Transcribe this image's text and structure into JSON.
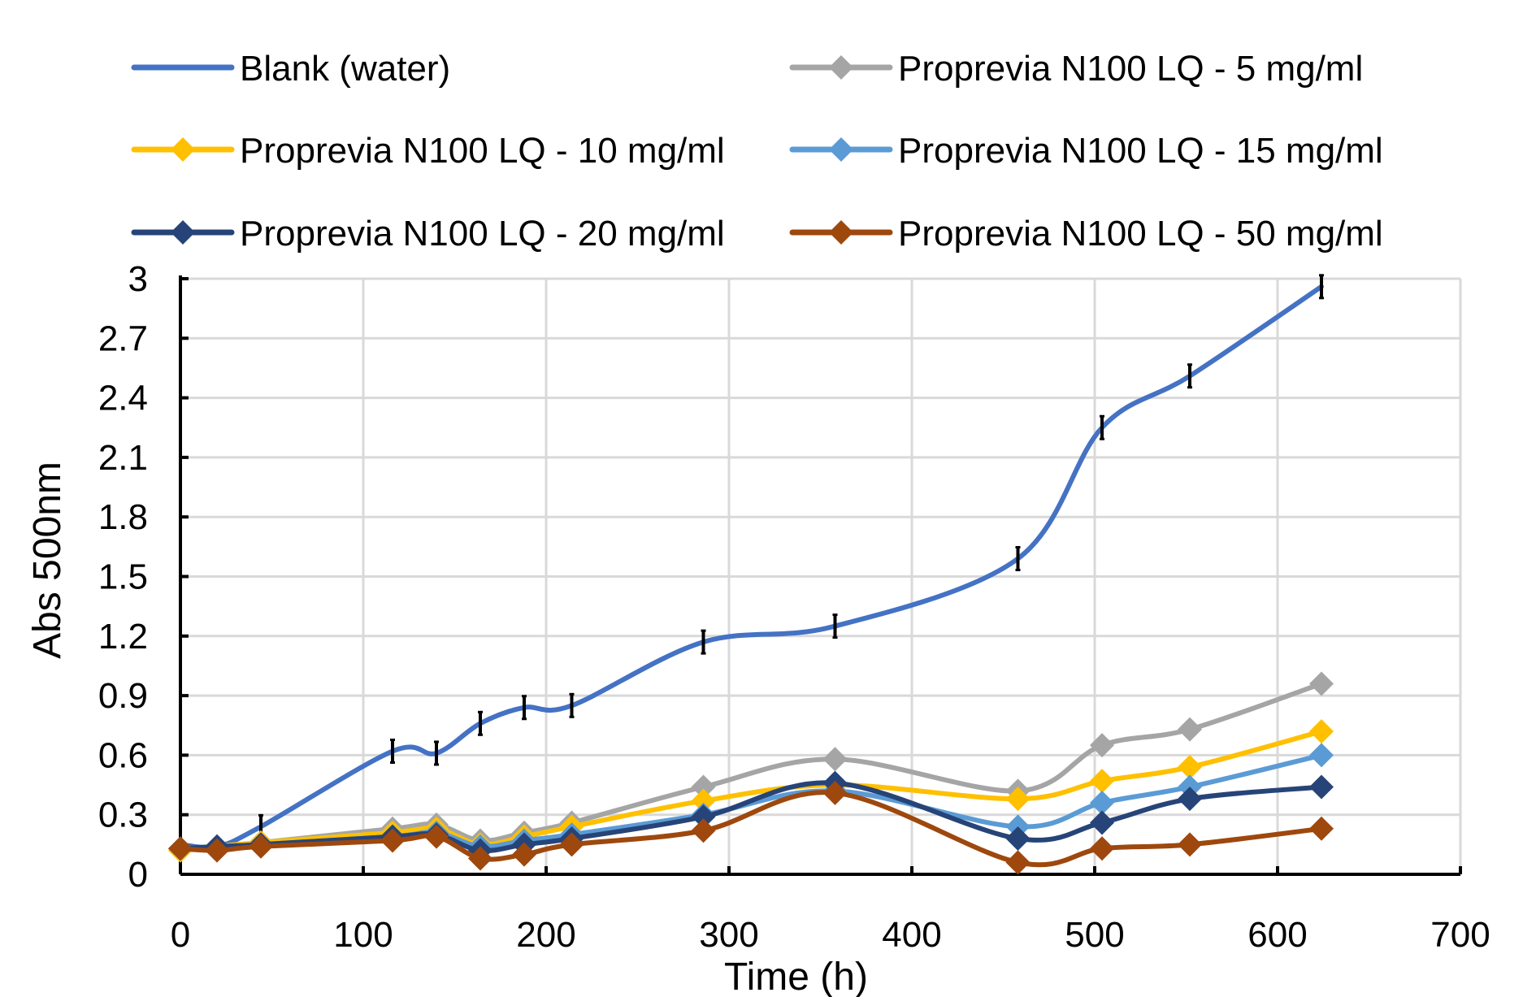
{
  "chart_data": {
    "type": "line",
    "title": "",
    "xlabel": "Time (h)",
    "ylabel": "Abs 500nm",
    "xlim": [
      0,
      700
    ],
    "ylim": [
      0,
      3
    ],
    "x_ticks": [
      "0",
      "100",
      "200",
      "300",
      "400",
      "500",
      "600",
      "700"
    ],
    "y_ticks": [
      "0",
      "0.3",
      "0.6",
      "0.9",
      "1.2",
      "1.5",
      "1.8",
      "2.1",
      "2.4",
      "2.7",
      "3"
    ],
    "grid": true,
    "legend_position": "top",
    "smooth_lines": true,
    "series": [
      {
        "name": "Blank (water)",
        "color": "#4472C4",
        "marker": "none",
        "error_bars": true,
        "points": [
          [
            0,
            0.15
          ],
          [
            20,
            0.14
          ],
          [
            44,
            0.24
          ],
          [
            116,
            0.62
          ],
          [
            140,
            0.61
          ],
          [
            164,
            0.76
          ],
          [
            188,
            0.84
          ],
          [
            214,
            0.85
          ],
          [
            286,
            1.17
          ],
          [
            358,
            1.25
          ],
          [
            458,
            1.59
          ],
          [
            504,
            2.25
          ],
          [
            552,
            2.51
          ],
          [
            624,
            2.96
          ]
        ]
      },
      {
        "name": "Proprevia N100 LQ - 5 mg/ml",
        "color": "#A5A5A5",
        "marker": "diamond",
        "points": [
          [
            0,
            0.12
          ],
          [
            20,
            0.14
          ],
          [
            44,
            0.16
          ],
          [
            116,
            0.23
          ],
          [
            140,
            0.25
          ],
          [
            164,
            0.17
          ],
          [
            188,
            0.21
          ],
          [
            214,
            0.26
          ],
          [
            286,
            0.44
          ],
          [
            358,
            0.58
          ],
          [
            458,
            0.42
          ],
          [
            504,
            0.65
          ],
          [
            552,
            0.73
          ],
          [
            624,
            0.96
          ]
        ]
      },
      {
        "name": "Proprevia N100 LQ - 10 mg/ml",
        "color": "#FFC000",
        "marker": "diamond",
        "points": [
          [
            0,
            0.12
          ],
          [
            20,
            0.14
          ],
          [
            44,
            0.16
          ],
          [
            116,
            0.21
          ],
          [
            140,
            0.23
          ],
          [
            164,
            0.15
          ],
          [
            188,
            0.19
          ],
          [
            214,
            0.24
          ],
          [
            286,
            0.37
          ],
          [
            358,
            0.45
          ],
          [
            458,
            0.38
          ],
          [
            504,
            0.47
          ],
          [
            552,
            0.54
          ],
          [
            624,
            0.72
          ]
        ]
      },
      {
        "name": "Proprevia N100 LQ - 15 mg/ml",
        "color": "#5B9BD5",
        "marker": "diamond",
        "points": [
          [
            0,
            0.13
          ],
          [
            20,
            0.14
          ],
          [
            44,
            0.15
          ],
          [
            116,
            0.19
          ],
          [
            140,
            0.21
          ],
          [
            164,
            0.14
          ],
          [
            188,
            0.17
          ],
          [
            214,
            0.2
          ],
          [
            286,
            0.3
          ],
          [
            358,
            0.42
          ],
          [
            458,
            0.24
          ],
          [
            504,
            0.36
          ],
          [
            552,
            0.44
          ],
          [
            624,
            0.6
          ]
        ]
      },
      {
        "name": "Proprevia N100 LQ - 20 mg/ml",
        "color": "#264478",
        "marker": "diamond",
        "points": [
          [
            0,
            0.13
          ],
          [
            20,
            0.14
          ],
          [
            44,
            0.15
          ],
          [
            116,
            0.19
          ],
          [
            140,
            0.2
          ],
          [
            164,
            0.12
          ],
          [
            188,
            0.15
          ],
          [
            214,
            0.18
          ],
          [
            286,
            0.29
          ],
          [
            358,
            0.46
          ],
          [
            458,
            0.18
          ],
          [
            504,
            0.26
          ],
          [
            552,
            0.38
          ],
          [
            624,
            0.44
          ]
        ]
      },
      {
        "name": "Proprevia N100 LQ - 50 mg/ml",
        "color": "#9E480E",
        "marker": "diamond",
        "points": [
          [
            0,
            0.13
          ],
          [
            20,
            0.12
          ],
          [
            44,
            0.14
          ],
          [
            116,
            0.17
          ],
          [
            140,
            0.19
          ],
          [
            164,
            0.08
          ],
          [
            188,
            0.1
          ],
          [
            214,
            0.15
          ],
          [
            286,
            0.22
          ],
          [
            358,
            0.41
          ],
          [
            458,
            0.06
          ],
          [
            504,
            0.13
          ],
          [
            552,
            0.15
          ],
          [
            624,
            0.23
          ]
        ]
      }
    ]
  }
}
